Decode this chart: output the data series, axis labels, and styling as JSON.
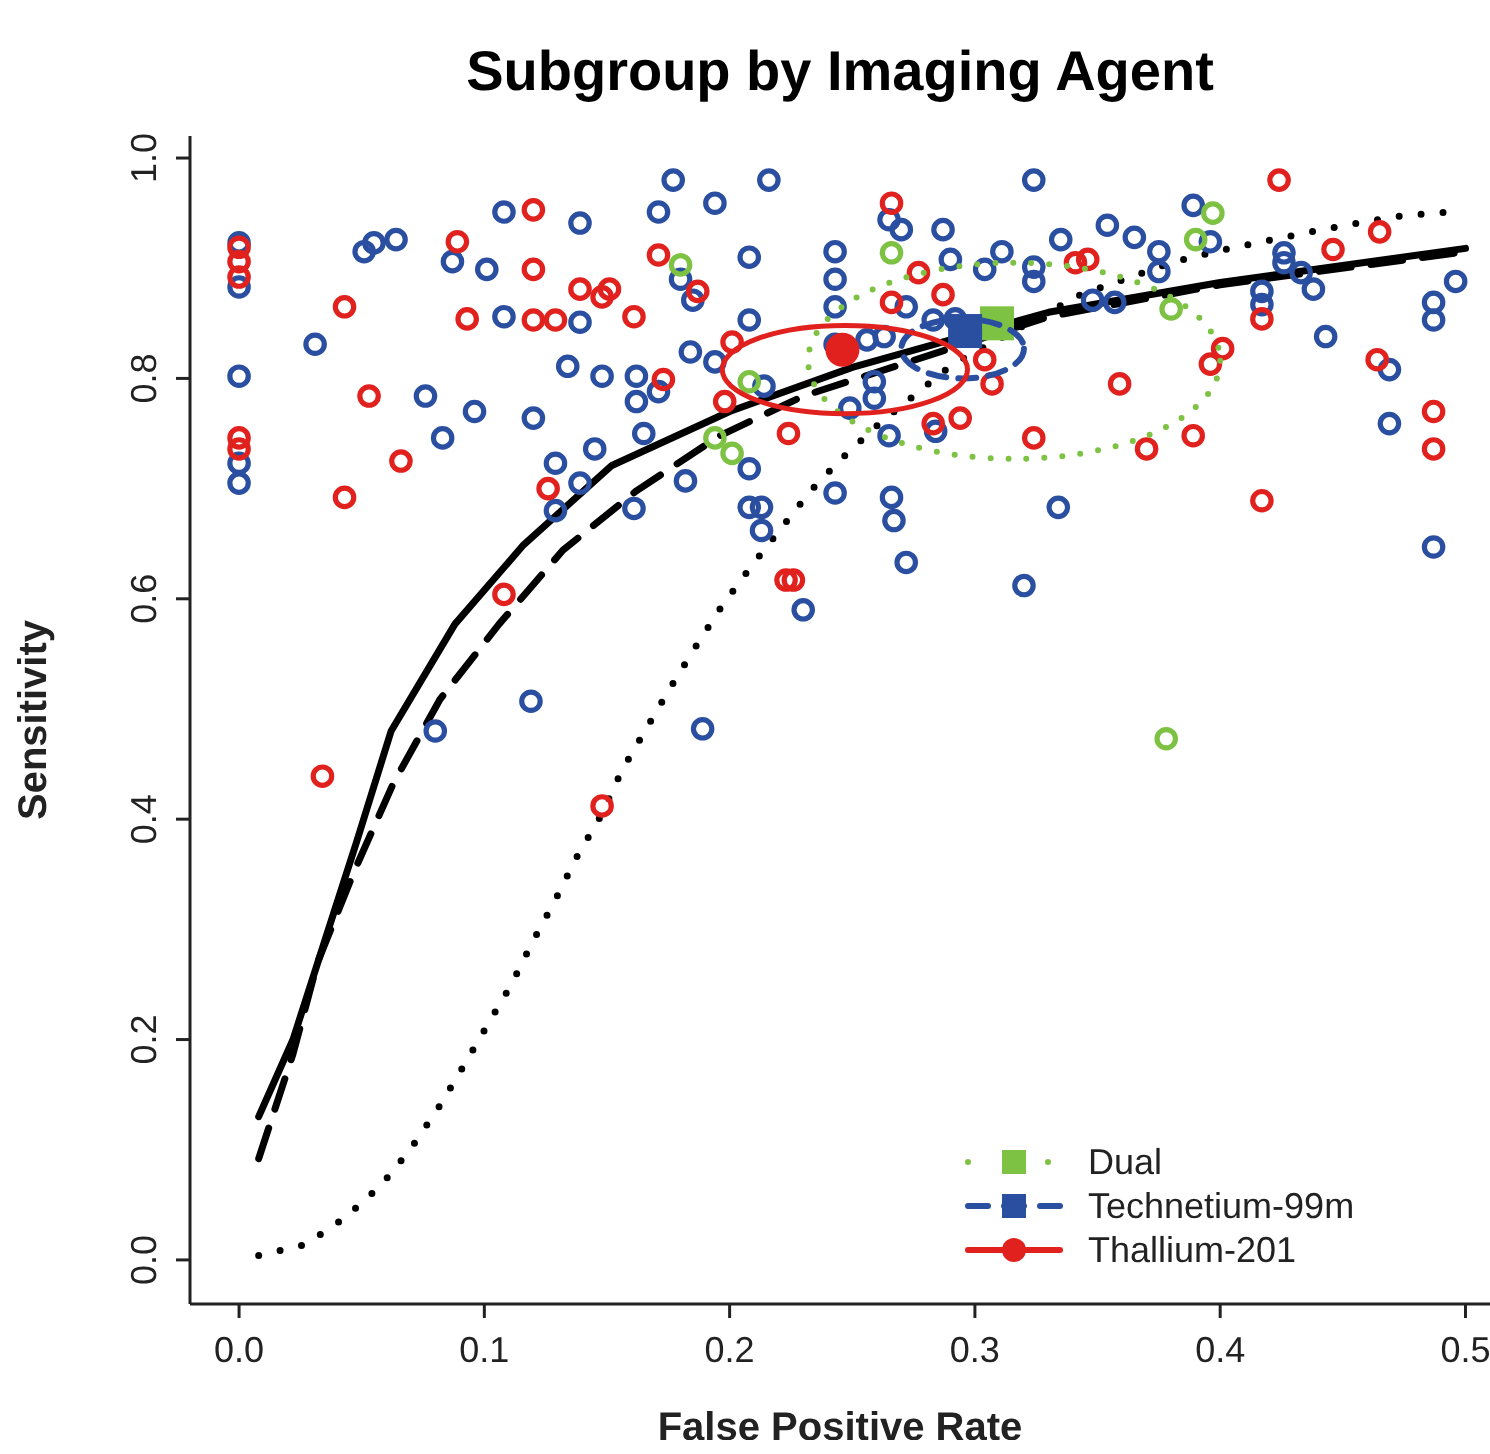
{
  "chart_data": {
    "type": "scatter",
    "title": "Subgroup by Imaging Agent",
    "xlabel": "False Positive Rate",
    "ylabel": "Sensitivity",
    "xlim": [
      -0.02,
      0.51
    ],
    "ylim": [
      -0.04,
      1.02
    ],
    "xticks": [
      {
        "value": 0,
        "label": "0.0"
      },
      {
        "value": 0.1,
        "label": "0.1"
      },
      {
        "value": 0.2,
        "label": "0.2"
      },
      {
        "value": 0.3,
        "label": "0.3"
      },
      {
        "value": 0.4,
        "label": "0.4"
      },
      {
        "value": 0.5,
        "label": "0.5"
      }
    ],
    "yticks": [
      {
        "value": 0,
        "label": "0.0"
      },
      {
        "value": 0.2,
        "label": "0.2"
      },
      {
        "value": 0.4,
        "label": "0.4"
      },
      {
        "value": 0.6,
        "label": "0.6"
      },
      {
        "value": 0.8,
        "label": "0.8"
      },
      {
        "value": 1,
        "label": "1.0"
      }
    ],
    "grid": false,
    "legend": "bottom right",
    "series": [
      {
        "type": "line",
        "color": "#000000",
        "line_style": "solid",
        "marker": "none",
        "x": [
          0.008,
          0.022,
          0.035,
          0.048,
          0.062,
          0.088,
          0.116,
          0.152,
          0.2,
          0.25,
          0.33,
          0.4,
          0.5
        ],
        "values": [
          0.13,
          0.2,
          0.29,
          0.38,
          0.48,
          0.577,
          0.649,
          0.721,
          0.77,
          0.81,
          0.86,
          0.887,
          0.918
        ]
      },
      {
        "type": "line",
        "color": "#000000",
        "line_style": "dashed",
        "marker": "none",
        "x": [
          0.008,
          0.022,
          0.032,
          0.047,
          0.063,
          0.082,
          0.106,
          0.132,
          0.162,
          0.196,
          0.23,
          0.33,
          0.4,
          0.5
        ],
        "values": [
          0.092,
          0.187,
          0.27,
          0.353,
          0.433,
          0.509,
          0.577,
          0.644,
          0.698,
          0.748,
          0.784,
          0.856,
          0.885,
          0.915
        ]
      },
      {
        "type": "line",
        "color": "#000000",
        "line_style": "dotted",
        "marker": "none",
        "x": [
          0.008,
          0.027,
          0.043,
          0.058,
          0.07,
          0.081,
          0.091,
          0.101,
          0.111,
          0.12,
          0.129,
          0.138,
          0.148,
          0.156,
          0.166,
          0.176,
          0.186,
          0.197,
          0.209,
          0.221,
          0.233,
          0.246,
          0.261,
          0.276,
          0.291,
          0.343,
          0.361,
          0.38,
          0.398,
          0.417,
          0.437,
          0.456,
          0.475,
          0.494
        ],
        "values": [
          0.004,
          0.014,
          0.038,
          0.068,
          0.101,
          0.137,
          0.174,
          0.212,
          0.25,
          0.29,
          0.327,
          0.367,
          0.405,
          0.444,
          0.482,
          0.52,
          0.556,
          0.594,
          0.63,
          0.664,
          0.698,
          0.728,
          0.759,
          0.786,
          0.813,
          0.876,
          0.89,
          0.905,
          0.915,
          0.924,
          0.933,
          0.941,
          0.948,
          0.951
        ]
      },
      {
        "color": "#2a4fa0",
        "marker": "circle",
        "x": [
          0,
          0,
          0,
          0,
          0,
          0.108,
          0.139,
          0.051,
          0.055,
          0.064,
          0.087,
          0.101,
          0.108,
          0.139,
          0.031,
          0.134,
          0.148,
          0.076,
          0.096,
          0.12,
          0.083,
          0.145,
          0.129,
          0.139,
          0.129,
          0.119,
          0.08,
          0.177,
          0.216,
          0.171,
          0.194,
          0.208,
          0.243,
          0.243,
          0.243,
          0.208,
          0.265,
          0.27,
          0.287,
          0.29,
          0.311,
          0.304,
          0.272,
          0.283,
          0.292,
          0.184,
          0.194,
          0.162,
          0.171,
          0.162,
          0.214,
          0.243,
          0.256,
          0.263,
          0.259,
          0.259,
          0.249,
          0.165,
          0.265,
          0.284,
          0.208,
          0.182,
          0.161,
          0.208,
          0.213,
          0.213,
          0.243,
          0.266,
          0.267,
          0.272,
          0.23,
          0.32,
          0.189,
          0.185,
          0.18,
          0.324,
          0.389,
          0.335,
          0.354,
          0.365,
          0.375,
          0.324,
          0.324,
          0.375,
          0.396,
          0.426,
          0.426,
          0.433,
          0.438,
          0.417,
          0.417,
          0.348,
          0.357,
          0.496,
          0.487,
          0.487,
          0.443,
          0.469,
          0.469,
          0.334,
          0.487
        ],
        "values": [
          0.923,
          0.883,
          0.802,
          0.723,
          0.705,
          0.951,
          0.941,
          0.915,
          0.923,
          0.926,
          0.906,
          0.899,
          0.856,
          0.851,
          0.831,
          0.811,
          0.802,
          0.784,
          0.77,
          0.764,
          0.746,
          0.736,
          0.723,
          0.705,
          0.68,
          0.507,
          0.48,
          0.98,
          0.98,
          0.951,
          0.959,
          0.91,
          0.915,
          0.89,
          0.865,
          0.853,
          0.944,
          0.935,
          0.935,
          0.908,
          0.915,
          0.899,
          0.865,
          0.853,
          0.854,
          0.824,
          0.815,
          0.802,
          0.788,
          0.779,
          0.793,
          0.831,
          0.835,
          0.838,
          0.797,
          0.782,
          0.773,
          0.75,
          0.748,
          0.752,
          0.718,
          0.707,
          0.682,
          0.683,
          0.683,
          0.662,
          0.696,
          0.692,
          0.671,
          0.633,
          0.59,
          0.612,
          0.482,
          0.871,
          0.89,
          0.98,
          0.957,
          0.926,
          0.939,
          0.928,
          0.915,
          0.901,
          0.888,
          0.897,
          0.924,
          0.914,
          0.905,
          0.896,
          0.881,
          0.879,
          0.867,
          0.871,
          0.869,
          0.888,
          0.869,
          0.853,
          0.838,
          0.808,
          0.759,
          0.683,
          0.647
        ]
      },
      {
        "color": "#e0211d",
        "marker": "circle",
        "x": [
          0,
          0,
          0,
          0,
          0,
          0.12,
          0.089,
          0.12,
          0.139,
          0.151,
          0.148,
          0.043,
          0.093,
          0.12,
          0.129,
          0.053,
          0.066,
          0.043,
          0.126,
          0.108,
          0.266,
          0.171,
          0.161,
          0.187,
          0.277,
          0.287,
          0.266,
          0.201,
          0.173,
          0.198,
          0.224,
          0.283,
          0.294,
          0.307,
          0.304,
          0.223,
          0.226,
          0.424,
          0.465,
          0.446,
          0.341,
          0.346,
          0.417,
          0.401,
          0.396,
          0.359,
          0.464,
          0.324,
          0.37,
          0.389,
          0.487,
          0.487,
          0.417,
          0.034,
          0.148
        ],
        "values": [
          0.919,
          0.906,
          0.892,
          0.746,
          0.736,
          0.953,
          0.924,
          0.899,
          0.881,
          0.881,
          0.874,
          0.865,
          0.854,
          0.853,
          0.853,
          0.784,
          0.725,
          0.692,
          0.7,
          0.604,
          0.959,
          0.912,
          0.856,
          0.879,
          0.896,
          0.876,
          0.869,
          0.833,
          0.799,
          0.779,
          0.75,
          0.759,
          0.764,
          0.795,
          0.817,
          0.617,
          0.617,
          0.98,
          0.933,
          0.917,
          0.905,
          0.908,
          0.854,
          0.827,
          0.813,
          0.795,
          0.817,
          0.746,
          0.736,
          0.748,
          0.77,
          0.736,
          0.689,
          0.439,
          0.412
        ]
      },
      {
        "color": "#7dc242",
        "marker": "circle",
        "x": [
          0.18,
          0.266,
          0.208,
          0.194,
          0.201,
          0.397,
          0.39,
          0.38,
          0.378
        ],
        "values": [
          0.903,
          0.914,
          0.797,
          0.746,
          0.732,
          0.95,
          0.926,
          0.863,
          0.473
        ]
      },
      {
        "name": "Dual",
        "color": "#7dc242",
        "marker": "square",
        "line_style": "dotted",
        "x": [
          0.309
        ],
        "values": [
          0.85
        ]
      },
      {
        "name": "Technetium-99m",
        "color": "#2a4fa0",
        "marker": "square",
        "line_style": "dashed",
        "x": [
          0.296
        ],
        "values": [
          0.843
        ]
      },
      {
        "name": "Thallium-201",
        "color": "#e0211d",
        "marker": "circle",
        "line_style": "solid",
        "x": [
          0.246
        ],
        "values": [
          0.826
        ]
      }
    ]
  }
}
